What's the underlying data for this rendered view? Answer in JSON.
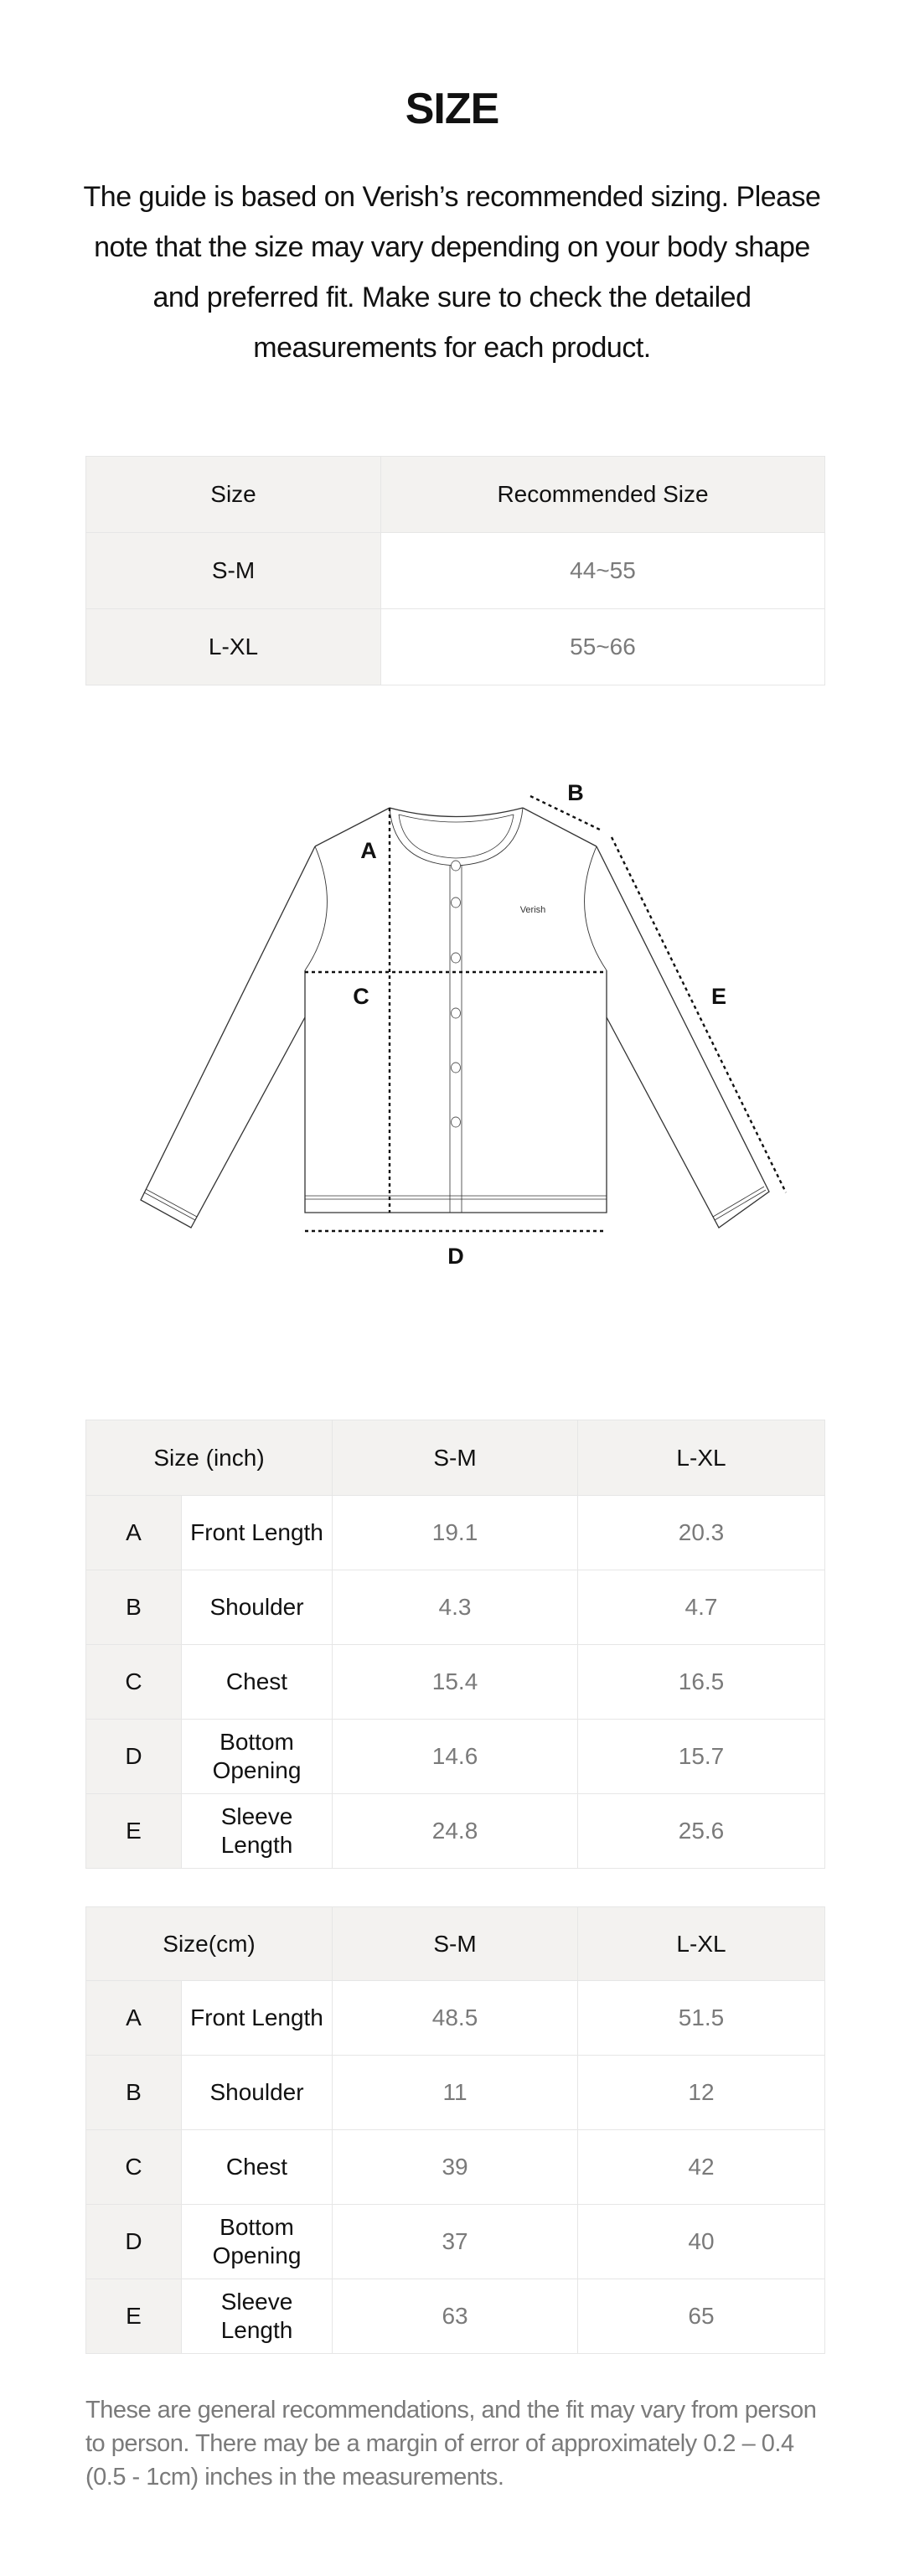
{
  "header": {
    "title": "SIZE",
    "intro": "The guide is based on Verish’s recommended sizing. Please note that the size may vary depending on your body shape and preferred fit. Make sure to check the detailed measurements for each product."
  },
  "recommended_table": {
    "headers": [
      "Size",
      "Recommended Size"
    ],
    "rows": [
      {
        "size": "S-M",
        "recommended": "44~55"
      },
      {
        "size": "L-XL",
        "recommended": "55~66"
      }
    ]
  },
  "diagram": {
    "brand_label": "Verish",
    "labels": {
      "a": "A",
      "b": "B",
      "c": "C",
      "d": "D",
      "e": "E"
    }
  },
  "inch_table": {
    "headers": [
      "Size (inch)",
      "S-M",
      "L-XL"
    ],
    "rows": [
      {
        "code": "A",
        "name": "Front Length",
        "sm": "19.1",
        "lxl": "20.3"
      },
      {
        "code": "B",
        "name": "Shoulder",
        "sm": "4.3",
        "lxl": "4.7"
      },
      {
        "code": "C",
        "name": "Chest",
        "sm": "15.4",
        "lxl": "16.5"
      },
      {
        "code": "D",
        "name": "Bottom Opening",
        "sm": "14.6",
        "lxl": "15.7"
      },
      {
        "code": "E",
        "name": "Sleeve Length",
        "sm": "24.8",
        "lxl": "25.6"
      }
    ]
  },
  "cm_table": {
    "headers": [
      "Size(cm)",
      "S-M",
      "L-XL"
    ],
    "rows": [
      {
        "code": "A",
        "name": "Front Length",
        "sm": "48.5",
        "lxl": "51.5"
      },
      {
        "code": "B",
        "name": "Shoulder",
        "sm": "11",
        "lxl": "12"
      },
      {
        "code": "C",
        "name": "Chest",
        "sm": "39",
        "lxl": "42"
      },
      {
        "code": "D",
        "name": "Bottom Opening",
        "sm": "37",
        "lxl": "40"
      },
      {
        "code": "E",
        "name": "Sleeve Length",
        "sm": "63",
        "lxl": "65"
      }
    ]
  },
  "footer": {
    "note": "These are general recommendations, and the fit may vary from person to person. There may be a margin of error of approximately 0.2 – 0.4 (0.5 - 1cm) inches in the measurements."
  },
  "colors": {
    "header_bg": "#f3f2f0",
    "border": "#e6e6e6",
    "value_text": "#7a7a7a",
    "text": "#111111"
  }
}
